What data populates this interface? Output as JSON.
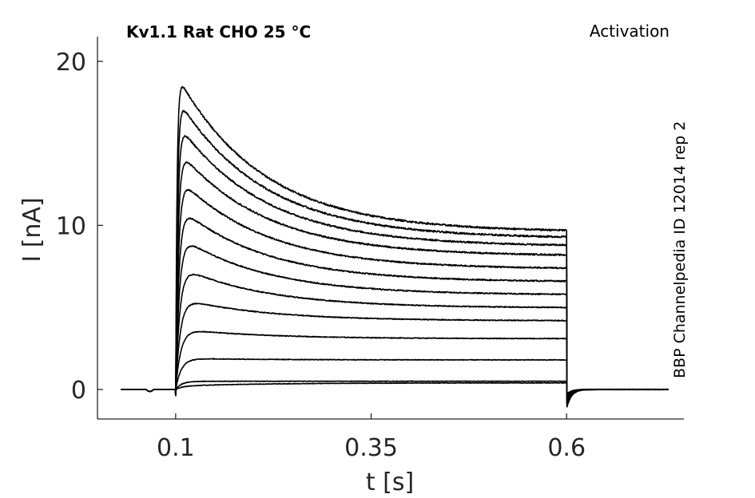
{
  "chart_data": {
    "type": "line",
    "title": "Kv1.1  Rat  CHO  25 °C",
    "subtitle": "Activation",
    "side_label": "BBP Channelpedia ID 12014 rep 2",
    "xlabel": "t [s]",
    "ylabel": "I [nA]",
    "xlim": [
      0.0,
      0.75
    ],
    "ylim": [
      -1.8,
      21.5
    ],
    "x_ticks": [
      0.1,
      0.35,
      0.6
    ],
    "x_tick_labels": [
      "0.1",
      "0.35",
      "0.6"
    ],
    "y_ticks": [
      0,
      10,
      20
    ],
    "y_tick_labels": [
      "0",
      "10",
      "20"
    ],
    "grid": false,
    "line_color": "#000000",
    "axis_color": "#262626",
    "pulse_start": 0.1,
    "pulse_end": 0.6,
    "trace_start": 0.03,
    "trace_end": 0.73,
    "sweeps": [
      {
        "peak": 0.2,
        "end": 0.4
      },
      {
        "peak": 0.5,
        "end": 0.5
      },
      {
        "peak": 1.9,
        "end": 1.8
      },
      {
        "peak": 3.7,
        "end": 3.1
      },
      {
        "peak": 5.6,
        "end": 4.2
      },
      {
        "peak": 7.6,
        "end": 5.0
      },
      {
        "peak": 9.5,
        "end": 5.8
      },
      {
        "peak": 11.3,
        "end": 6.6
      },
      {
        "peak": 13.1,
        "end": 7.4
      },
      {
        "peak": 14.8,
        "end": 8.2
      },
      {
        "peak": 16.4,
        "end": 8.8
      },
      {
        "peak": 17.9,
        "end": 9.3
      },
      {
        "peak": 19.3,
        "end": 9.7
      }
    ]
  }
}
